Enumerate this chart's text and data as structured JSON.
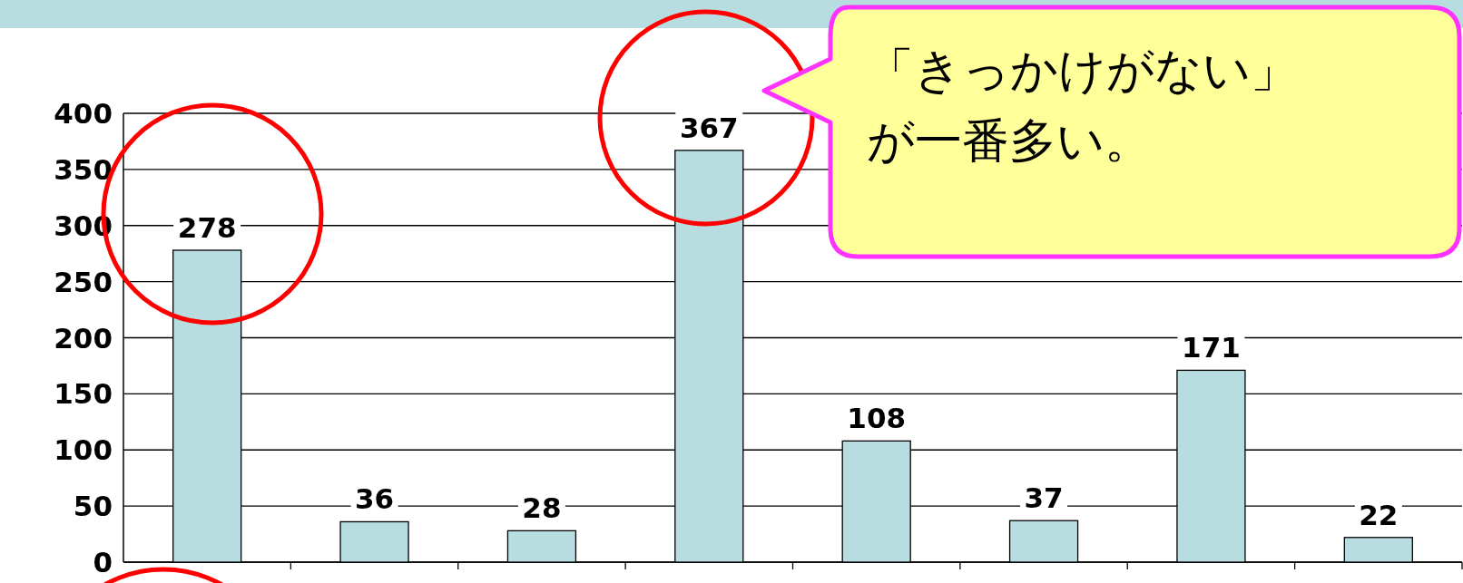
{
  "chart_data": {
    "type": "bar",
    "categories": [
      null,
      null,
      null,
      null,
      null,
      null,
      null,
      null
    ],
    "values": [
      278,
      36,
      28,
      367,
      108,
      37,
      171,
      22
    ],
    "color": "#b7dde1",
    "ylim": [
      0,
      400
    ],
    "yticks": [
      0,
      50,
      100,
      150,
      200,
      250,
      300,
      350,
      400
    ],
    "grid": "y",
    "data_labels": true,
    "annotations": [
      "「きっかけがない」が一番多い。"
    ]
  }
}
